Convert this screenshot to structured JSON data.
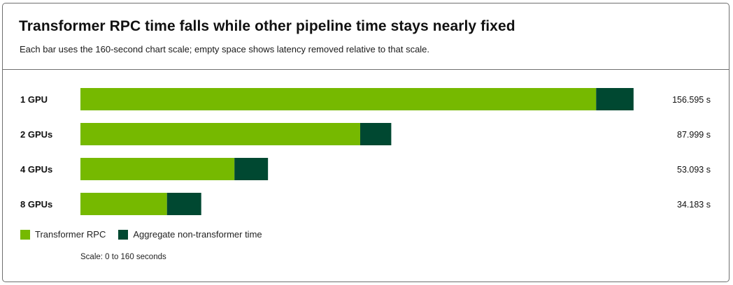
{
  "header": {
    "title": "Transformer RPC time falls while other pipeline time stays nearly fixed",
    "subtitle": "Each bar uses the 160-second chart scale; empty space shows latency removed relative to that scale."
  },
  "legend": {
    "items": [
      {
        "label": "Transformer RPC",
        "color": "#76b900"
      },
      {
        "label": "Aggregate non-transformer time",
        "color": "#004831"
      }
    ]
  },
  "scale_note": "Scale: 0 to 160 seconds",
  "chart_data": {
    "type": "bar",
    "orientation": "horizontal",
    "stacked": true,
    "categories": [
      "1 GPU",
      "2 GPUs",
      "4 GPUs",
      "8 GPUs"
    ],
    "series": [
      {
        "name": "Transformer RPC",
        "color": "#76b900",
        "values": [
          146.0,
          79.2,
          43.6,
          24.5
        ]
      },
      {
        "name": "Aggregate non-transformer time",
        "color": "#004831",
        "values": [
          10.6,
          8.8,
          9.5,
          9.7
        ]
      }
    ],
    "totals": [
      "156.595 s",
      "87.999 s",
      "53.093 s",
      "34.183 s"
    ],
    "xlim": [
      0,
      160
    ],
    "grid": false,
    "legend_position": "bottom-left"
  }
}
